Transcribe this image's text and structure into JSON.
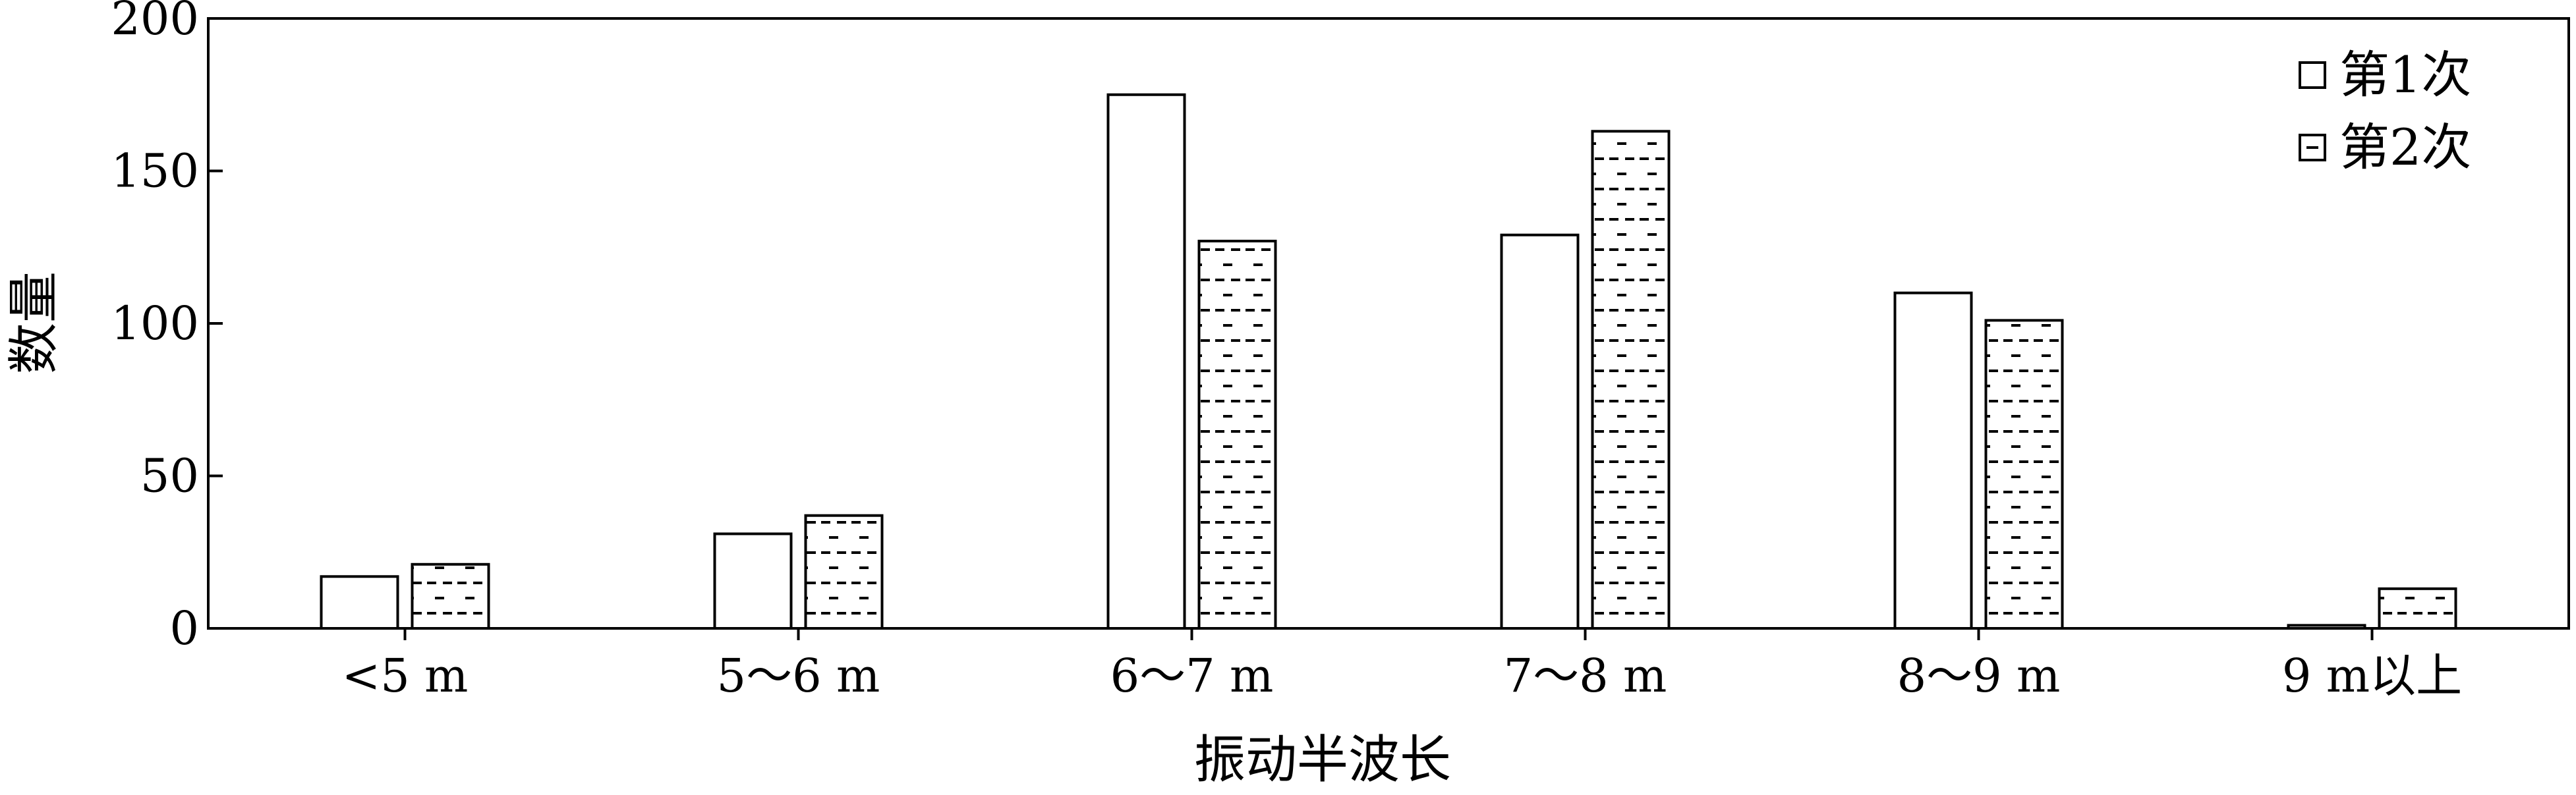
{
  "chart_data": {
    "type": "bar",
    "title": "",
    "xlabel": "振动半波长",
    "ylabel": "数量",
    "categories": [
      "<5 m",
      "5～6 m",
      "6～7 m",
      "7～8 m",
      "8～9 m",
      "9 m以上"
    ],
    "series": [
      {
        "name": "第1次",
        "pattern": "solid-white",
        "values": [
          17,
          31,
          175,
          129,
          110,
          1
        ]
      },
      {
        "name": "第2次",
        "pattern": "dashed-hatch",
        "values": [
          21,
          37,
          127,
          163,
          101,
          13
        ]
      }
    ],
    "ylim": [
      0,
      200
    ],
    "yticks": [
      0,
      50,
      100,
      150,
      200
    ],
    "grid": false,
    "legend_position": "top-right",
    "colors": {
      "stroke": "#000000",
      "fill": "#ffffff"
    }
  }
}
